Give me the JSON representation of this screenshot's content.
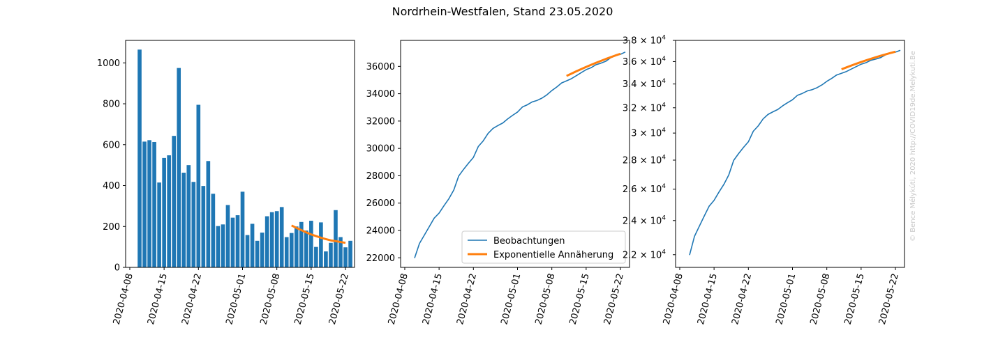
{
  "figure": {
    "title": "Nordrhein-Westfalen, Stand 23.05.2020",
    "watermark": "© Bence Mélykúti, 2020  http://COVID19de.Melykuti.Be",
    "colors": {
      "observed": "#1f77b4",
      "fit": "#ff7f0e"
    }
  },
  "chart_data": [
    {
      "type": "bar",
      "start_date": "2020-04-10",
      "x_ticks": [
        "2020-04-08",
        "2020-04-15",
        "2020-04-22",
        "2020-05-01",
        "2020-05-08",
        "2020-05-15",
        "2020-05-22"
      ],
      "y_ticks": [
        "0",
        "200",
        "400",
        "600",
        "800",
        "1000"
      ],
      "ylim": [
        0,
        1110
      ],
      "series": [
        {
          "values": [
            1065,
            615,
            622,
            613,
            415,
            535,
            548,
            643,
            975,
            463,
            500,
            418,
            795,
            398,
            520,
            360,
            202,
            210,
            305,
            243,
            255,
            370,
            158,
            213,
            130,
            170,
            250,
            270,
            275,
            295,
            148,
            168,
            200,
            222,
            180,
            228,
            100,
            220,
            78,
            120,
            280,
            148,
            98,
            130
          ],
          "kind": "bar"
        },
        {
          "name": "Exponentielle Annäherung",
          "start_date": "2020-05-11",
          "values": [
            205,
            193,
            182,
            171,
            161,
            153,
            145,
            138,
            132,
            128,
            124,
            120
          ]
        }
      ]
    },
    {
      "type": "line",
      "start_date": "2020-04-10",
      "x_ticks": [
        "2020-04-08",
        "2020-04-15",
        "2020-04-22",
        "2020-05-01",
        "2020-05-08",
        "2020-05-15",
        "2020-05-22"
      ],
      "y_ticks": [
        "22000",
        "24000",
        "26000",
        "28000",
        "30000",
        "32000",
        "34000",
        "36000"
      ],
      "ylim": [
        21300,
        37900
      ],
      "legend": {
        "placement": "lower right"
      },
      "series": [
        {
          "name": "Beobachtungen",
          "values": [
            21980,
            23050,
            23660,
            24280,
            24900,
            25270,
            25810,
            26320,
            26960,
            27980,
            28470,
            28920,
            29340,
            30140,
            30550,
            31100,
            31460,
            31670,
            31860,
            32160,
            32420,
            32660,
            33030,
            33190,
            33400,
            33510,
            33680,
            33920,
            34230,
            34490,
            34790,
            34940,
            35100,
            35320,
            35540,
            35760,
            35900,
            36120,
            36230,
            36370,
            36630,
            36780,
            36880,
            37050
          ]
        },
        {
          "name": "Exponentielle Annäherung",
          "start_date": "2020-05-11",
          "values": [
            35300,
            35470,
            35640,
            35800,
            35960,
            36110,
            36260,
            36400,
            36540,
            36670,
            36800,
            36920
          ]
        }
      ]
    },
    {
      "type": "line",
      "y_scale": "log",
      "start_date": "2020-04-10",
      "x_ticks": [
        "2020-04-08",
        "2020-04-15",
        "2020-04-22",
        "2020-05-01",
        "2020-05-08",
        "2020-05-15",
        "2020-05-22"
      ],
      "y_ticks": [
        {
          "mant": "2.2",
          "value": 22000
        },
        {
          "mant": "2.4",
          "value": 24000
        },
        {
          "mant": "2.6",
          "value": 26000
        },
        {
          "mant": "2.8",
          "value": 28000
        },
        {
          "mant": "3",
          "value": 30000
        },
        {
          "mant": "3.2",
          "value": 32000
        },
        {
          "mant": "3.4",
          "value": 34000
        },
        {
          "mant": "3.6",
          "value": 36000
        },
        {
          "mant": "3.8",
          "value": 38000
        }
      ],
      "tick_base": "10",
      "tick_exp": "4",
      "ylim": [
        21300,
        38000
      ],
      "series": [
        {
          "name": "Beobachtungen",
          "values": [
            21980,
            23050,
            23660,
            24280,
            24900,
            25270,
            25810,
            26320,
            26960,
            27980,
            28470,
            28920,
            29340,
            30140,
            30550,
            31100,
            31460,
            31670,
            31860,
            32160,
            32420,
            32660,
            33030,
            33190,
            33400,
            33510,
            33680,
            33920,
            34230,
            34490,
            34790,
            34940,
            35100,
            35320,
            35540,
            35760,
            35900,
            36120,
            36230,
            36370,
            36630,
            36780,
            36880,
            37050
          ]
        },
        {
          "name": "Exponentielle Annäherung",
          "start_date": "2020-05-11",
          "values": [
            35300,
            35470,
            35640,
            35800,
            35960,
            36110,
            36260,
            36400,
            36540,
            36670,
            36800,
            36920
          ]
        }
      ]
    }
  ]
}
